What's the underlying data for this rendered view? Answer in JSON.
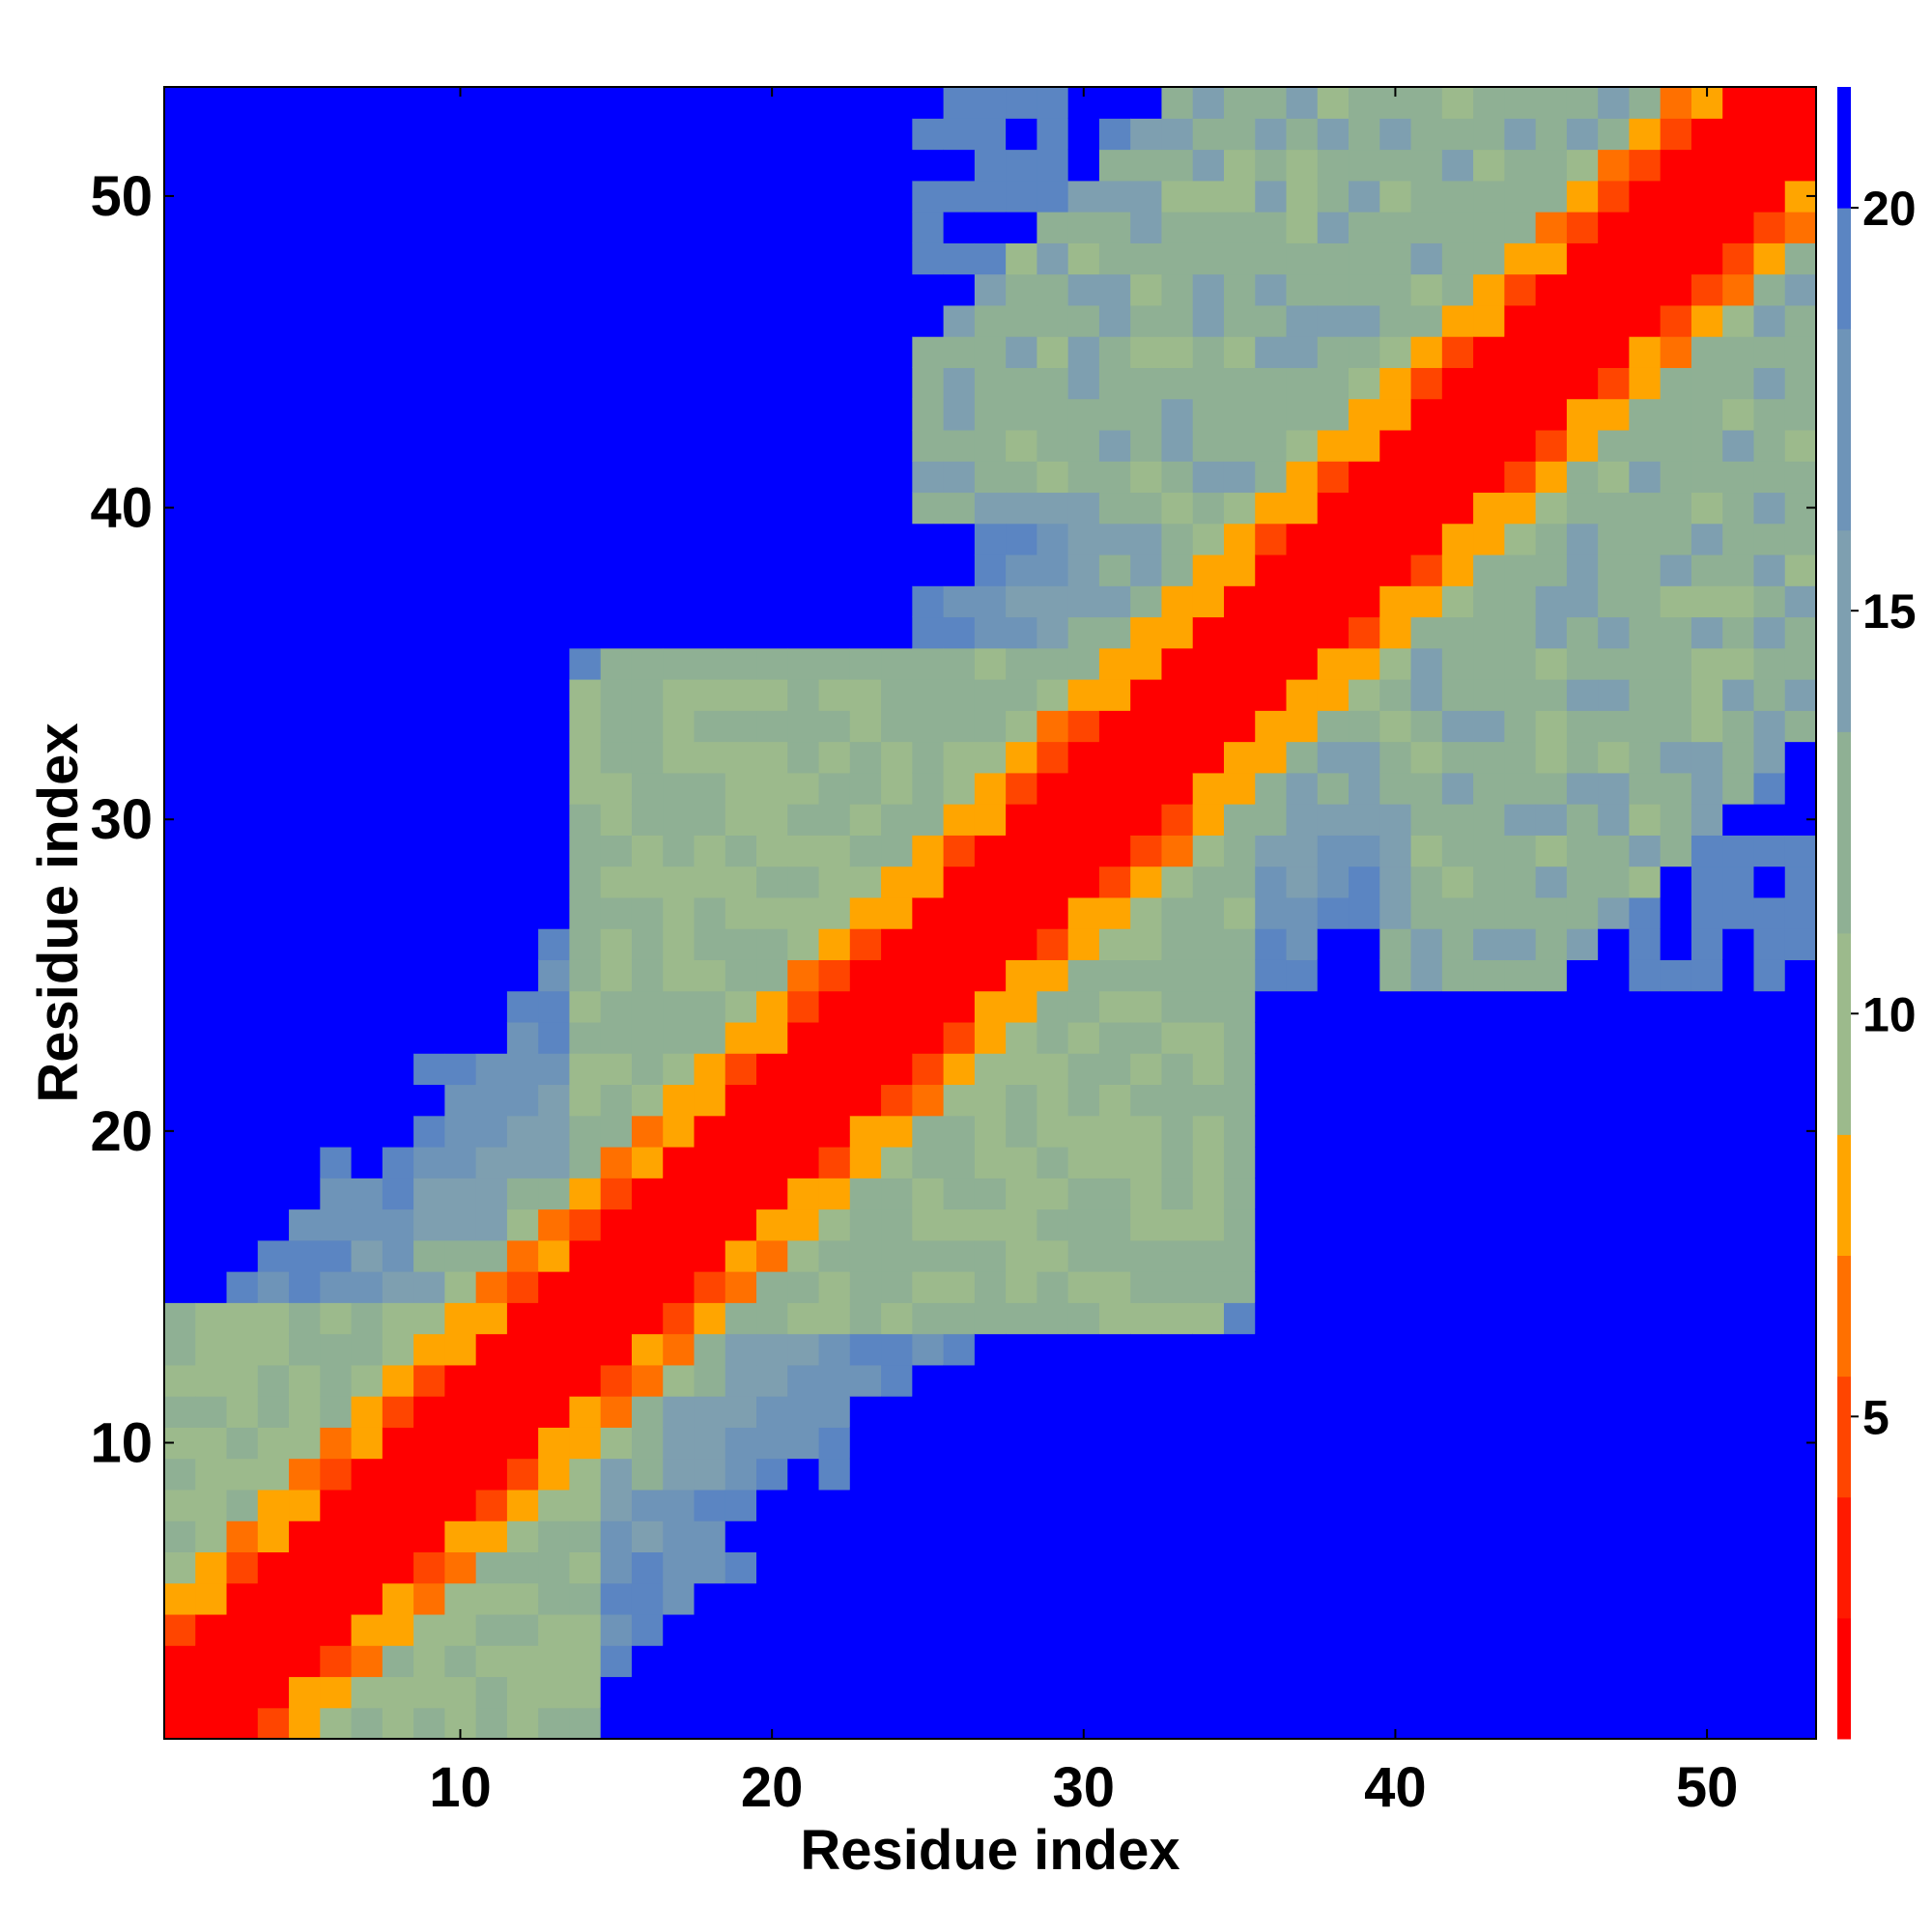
{
  "chart_data": {
    "type": "heatmap",
    "title": "",
    "xlabel": "Residue index",
    "ylabel": "Residue index",
    "n": 53,
    "x_ticks": [
      10,
      20,
      30,
      40,
      50
    ],
    "y_ticks": [
      10,
      20,
      30,
      40,
      50
    ],
    "colorbar": {
      "ticks": [
        5,
        10,
        15,
        20
      ],
      "range": [
        1,
        21.5
      ],
      "bins": [
        {
          "upper": 2.5,
          "color": "#ff0000"
        },
        {
          "upper": 4.0,
          "color": "#ff1a00"
        },
        {
          "upper": 5.5,
          "color": "#ff4500"
        },
        {
          "upper": 7.0,
          "color": "#ff7000"
        },
        {
          "upper": 8.5,
          "color": "#ffa500"
        },
        {
          "upper": 11.0,
          "color": "#9cba8c"
        },
        {
          "upper": 13.5,
          "color": "#8fb094"
        },
        {
          "upper": 16.0,
          "color": "#7e9fb0"
        },
        {
          "upper": 18.5,
          "color": "#6e94b8"
        },
        {
          "upper": 20.0,
          "color": "#5b85c2"
        },
        {
          "upper": 21.5,
          "color": "#0000ff"
        }
      ]
    },
    "distance_model": "Approximate pairwise distance map between residues (symmetric about the diagonal); values estimated from colors, beyond cutoff shown as 21.5.",
    "offdiag_blobs": [
      {
        "i_range": [
          14,
          38
        ],
        "j_range": [
          18,
          35
        ],
        "value": 11.5
      },
      {
        "i_range": [
          25,
          52
        ],
        "j_range": [
          40,
          53
        ],
        "value": 12.5
      },
      {
        "i_range": [
          1,
          14
        ],
        "j_range": [
          1,
          14
        ],
        "value": 10.5
      }
    ]
  }
}
